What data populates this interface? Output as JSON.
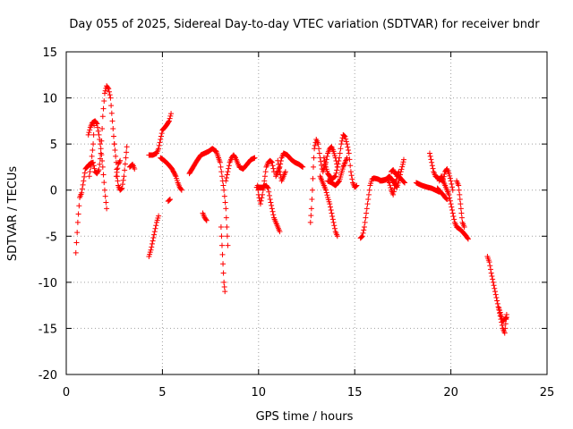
{
  "chart_data": {
    "type": "scatter",
    "title": "Day 055 of 2025, Sidereal Day-to-day VTEC variation (SDTVAR) for receiver bndr",
    "xlabel": "GPS time / hours",
    "ylabel": "SDTVAR / TECUs",
    "xlim": [
      0,
      25
    ],
    "ylim": [
      -20,
      15
    ],
    "xticks": [
      0,
      5,
      10,
      15,
      20,
      25
    ],
    "yticks": [
      -20,
      -15,
      -10,
      -5,
      0,
      5,
      10,
      15
    ],
    "xtick_labels": [
      "0",
      "5",
      "10",
      "15",
      "20",
      "25"
    ],
    "ytick_labels": [
      "-20",
      "-15",
      "-10",
      "-5",
      "0",
      "5",
      "10",
      "15"
    ],
    "grid": true,
    "marker": "+",
    "color": "#ff0000",
    "segments": [
      [
        [
          0.5,
          -6.8
        ],
        [
          0.6,
          -3.5
        ],
        [
          0.7,
          -0.8
        ],
        [
          0.8,
          -0.3
        ],
        [
          0.9,
          1.0
        ],
        [
          1.0,
          2.3
        ],
        [
          1.2,
          2.8
        ],
        [
          1.4,
          3.0
        ],
        [
          1.5,
          2.0
        ],
        [
          1.6,
          1.8
        ],
        [
          1.7,
          2.2
        ],
        [
          1.8,
          4.0
        ],
        [
          1.9,
          8.0
        ],
        [
          2.0,
          10.5
        ],
        [
          2.1,
          11.3
        ],
        [
          2.2,
          11.0
        ],
        [
          2.3,
          10.0
        ],
        [
          2.4,
          7.5
        ],
        [
          2.5,
          5.0
        ]
      ],
      [
        [
          1.15,
          6.0
        ],
        [
          1.25,
          6.8
        ],
        [
          1.35,
          7.3
        ],
        [
          1.5,
          7.5
        ],
        [
          1.6,
          7.2
        ],
        [
          1.7,
          6.0
        ],
        [
          1.8,
          4.5
        ],
        [
          1.9,
          2.5
        ],
        [
          2.0,
          0.0
        ],
        [
          2.1,
          -2.0
        ]
      ],
      [
        [
          1.2,
          1.5
        ],
        [
          1.3,
          3.0
        ],
        [
          1.4,
          5.0
        ],
        [
          1.45,
          7.0
        ]
      ],
      [
        [
          2.5,
          5.0
        ],
        [
          2.6,
          3.0
        ],
        [
          2.65,
          1.5
        ],
        [
          2.7,
          0.5
        ],
        [
          2.8,
          0.0
        ],
        [
          2.9,
          0.2
        ],
        [
          3.0,
          1.5
        ],
        [
          3.1,
          3.5
        ],
        [
          3.15,
          4.7
        ]
      ],
      [
        [
          2.6,
          1.5
        ],
        [
          2.7,
          2.8
        ],
        [
          2.8,
          3.2
        ]
      ],
      [
        [
          3.3,
          2.5
        ],
        [
          3.45,
          2.8
        ],
        [
          3.55,
          2.3
        ]
      ],
      [
        [
          4.3,
          -7.2
        ],
        [
          4.4,
          -6.5
        ],
        [
          4.5,
          -5.5
        ],
        [
          4.6,
          -4.5
        ],
        [
          4.7,
          -3.5
        ],
        [
          4.8,
          -2.8
        ]
      ],
      [
        [
          4.3,
          3.8
        ],
        [
          4.5,
          3.8
        ],
        [
          4.7,
          4.0
        ],
        [
          4.8,
          4.5
        ],
        [
          4.9,
          5.5
        ],
        [
          5.0,
          6.5
        ],
        [
          5.2,
          7.0
        ],
        [
          5.35,
          7.5
        ],
        [
          5.45,
          8.3
        ]
      ],
      [
        [
          5.3,
          -1.2
        ],
        [
          5.4,
          -1.0
        ]
      ],
      [
        [
          4.9,
          3.5
        ],
        [
          5.1,
          3.2
        ],
        [
          5.3,
          2.8
        ],
        [
          5.5,
          2.3
        ],
        [
          5.7,
          1.5
        ],
        [
          5.8,
          0.8
        ],
        [
          5.9,
          0.3
        ],
        [
          6.0,
          0.0
        ]
      ],
      [
        [
          6.4,
          1.8
        ],
        [
          6.6,
          2.5
        ],
        [
          6.8,
          3.2
        ],
        [
          7.0,
          3.8
        ],
        [
          7.2,
          4.0
        ],
        [
          7.4,
          4.2
        ],
        [
          7.6,
          4.5
        ],
        [
          7.8,
          4.2
        ],
        [
          8.0,
          3.0
        ],
        [
          8.1,
          1.5
        ],
        [
          8.2,
          0.0
        ],
        [
          8.3,
          -2.0
        ],
        [
          8.35,
          -4.0
        ],
        [
          8.4,
          -6.0
        ]
      ],
      [
        [
          7.1,
          -2.5
        ],
        [
          7.2,
          -3.0
        ],
        [
          7.3,
          -3.3
        ]
      ],
      [
        [
          8.05,
          -4.0
        ],
        [
          8.1,
          -6.0
        ],
        [
          8.15,
          -8.0
        ],
        [
          8.2,
          -10.0
        ],
        [
          8.25,
          -11.0
        ]
      ],
      [
        [
          8.3,
          1.0
        ],
        [
          8.4,
          2.0
        ],
        [
          8.5,
          3.0
        ],
        [
          8.6,
          3.5
        ],
        [
          8.7,
          3.8
        ],
        [
          8.8,
          3.5
        ],
        [
          8.9,
          3.0
        ],
        [
          9.0,
          2.5
        ],
        [
          9.2,
          2.3
        ],
        [
          9.4,
          2.8
        ],
        [
          9.6,
          3.3
        ],
        [
          9.8,
          3.5
        ]
      ],
      [
        [
          9.95,
          0.5
        ],
        [
          10.0,
          -0.5
        ],
        [
          10.1,
          -1.5
        ],
        [
          10.2,
          -0.5
        ],
        [
          10.3,
          1.0
        ],
        [
          10.4,
          2.5
        ],
        [
          10.5,
          3.0
        ],
        [
          10.6,
          3.2
        ],
        [
          10.7,
          3.0
        ],
        [
          10.8,
          2.0
        ]
      ],
      [
        [
          9.9,
          0.3
        ],
        [
          10.2,
          0.3
        ],
        [
          10.4,
          0.5
        ],
        [
          10.5,
          0.2
        ],
        [
          10.6,
          -1.0
        ],
        [
          10.7,
          -2.0
        ],
        [
          10.8,
          -3.0
        ],
        [
          10.9,
          -3.5
        ],
        [
          11.0,
          -4.0
        ],
        [
          11.1,
          -4.5
        ]
      ],
      [
        [
          10.9,
          1.5
        ],
        [
          11.1,
          2.5
        ],
        [
          11.2,
          3.5
        ],
        [
          11.3,
          4.0
        ],
        [
          11.5,
          3.8
        ],
        [
          11.7,
          3.3
        ],
        [
          11.9,
          3.0
        ],
        [
          12.1,
          2.8
        ],
        [
          12.3,
          2.5
        ]
      ],
      [
        [
          11.0,
          3.2
        ],
        [
          11.1,
          2.0
        ],
        [
          11.2,
          1.0
        ],
        [
          11.3,
          1.5
        ],
        [
          11.4,
          2.0
        ]
      ],
      [
        [
          12.7,
          -3.5
        ],
        [
          12.75,
          -2.0
        ],
        [
          12.8,
          0.0
        ],
        [
          12.85,
          2.5
        ],
        [
          12.9,
          4.5
        ],
        [
          13.0,
          5.5
        ],
        [
          13.1,
          5.0
        ],
        [
          13.2,
          3.5
        ],
        [
          13.3,
          2.3
        ]
      ],
      [
        [
          13.2,
          1.5
        ],
        [
          13.3,
          1.0
        ],
        [
          13.4,
          0.5
        ],
        [
          13.5,
          0.0
        ],
        [
          13.6,
          -0.8
        ],
        [
          13.7,
          -1.5
        ],
        [
          13.8,
          -2.5
        ],
        [
          13.9,
          -3.5
        ],
        [
          14.0,
          -4.5
        ],
        [
          14.1,
          -5.0
        ]
      ],
      [
        [
          13.35,
          2.0
        ],
        [
          13.5,
          3.0
        ],
        [
          13.6,
          4.0
        ],
        [
          13.7,
          4.5
        ],
        [
          13.8,
          4.7
        ],
        [
          13.9,
          4.2
        ],
        [
          14.0,
          3.5
        ],
        [
          14.1,
          2.5
        ]
      ],
      [
        [
          13.4,
          3.5
        ],
        [
          13.5,
          2.5
        ],
        [
          13.6,
          1.8
        ],
        [
          13.8,
          1.2
        ],
        [
          14.0,
          1.5
        ],
        [
          14.1,
          2.5
        ],
        [
          14.2,
          3.5
        ],
        [
          14.3,
          5.0
        ],
        [
          14.4,
          6.0
        ],
        [
          14.5,
          5.8
        ],
        [
          14.6,
          5.0
        ],
        [
          14.7,
          4.0
        ],
        [
          14.8,
          2.0
        ],
        [
          14.9,
          0.8
        ],
        [
          15.0,
          0.3
        ],
        [
          15.1,
          0.5
        ]
      ],
      [
        [
          13.6,
          1.0
        ],
        [
          13.8,
          0.8
        ],
        [
          14.0,
          0.5
        ],
        [
          14.2,
          1.0
        ],
        [
          14.4,
          2.5
        ],
        [
          14.6,
          3.5
        ]
      ],
      [
        [
          15.3,
          -5.2
        ],
        [
          15.4,
          -5.0
        ],
        [
          15.5,
          -4.0
        ],
        [
          15.6,
          -2.5
        ],
        [
          15.7,
          -1.0
        ],
        [
          15.8,
          0.5
        ],
        [
          15.9,
          1.2
        ],
        [
          16.0,
          1.3
        ],
        [
          16.2,
          1.2
        ],
        [
          16.4,
          1.0
        ],
        [
          16.6,
          1.1
        ],
        [
          16.8,
          1.5
        ],
        [
          17.0,
          1.0
        ],
        [
          17.2,
          0.3
        ],
        [
          17.3,
          1.0
        ],
        [
          17.4,
          2.0
        ],
        [
          17.5,
          2.8
        ],
        [
          17.55,
          3.3
        ]
      ],
      [
        [
          16.3,
          1.0
        ],
        [
          16.5,
          1.1
        ],
        [
          16.7,
          1.2
        ],
        [
          16.8,
          0.8
        ],
        [
          16.9,
          0.0
        ],
        [
          17.0,
          -0.5
        ],
        [
          17.1,
          0.5
        ],
        [
          17.2,
          1.5
        ],
        [
          17.3,
          2.0
        ]
      ],
      [
        [
          16.9,
          2.0
        ],
        [
          17.0,
          2.2
        ],
        [
          17.1,
          1.8
        ],
        [
          17.3,
          1.5
        ],
        [
          17.5,
          1.0
        ],
        [
          17.6,
          0.8
        ]
      ],
      [
        [
          18.2,
          0.8
        ],
        [
          18.5,
          0.5
        ],
        [
          18.8,
          0.3
        ],
        [
          19.0,
          0.2
        ],
        [
          19.2,
          0.0
        ],
        [
          19.4,
          -0.2
        ]
      ],
      [
        [
          18.9,
          4.0
        ],
        [
          19.0,
          3.0
        ],
        [
          19.1,
          2.0
        ],
        [
          19.2,
          1.5
        ],
        [
          19.4,
          1.2
        ],
        [
          19.6,
          1.0
        ],
        [
          19.7,
          0.5
        ],
        [
          19.8,
          0.0
        ],
        [
          19.9,
          -0.5
        ],
        [
          20.0,
          -1.5
        ],
        [
          20.1,
          -2.5
        ],
        [
          20.2,
          -3.5
        ],
        [
          20.3,
          -4.0
        ],
        [
          20.5,
          -4.3
        ],
        [
          20.6,
          -4.5
        ],
        [
          20.8,
          -5.0
        ],
        [
          20.9,
          -5.3
        ]
      ],
      [
        [
          19.3,
          0.2
        ],
        [
          19.5,
          -0.3
        ],
        [
          19.6,
          -0.5
        ],
        [
          19.7,
          -0.8
        ],
        [
          19.8,
          -1.0
        ]
      ],
      [
        [
          19.4,
          1.0
        ],
        [
          19.5,
          1.5
        ],
        [
          19.6,
          1.2
        ],
        [
          19.7,
          2.0
        ],
        [
          19.8,
          2.3
        ],
        [
          19.9,
          1.8
        ],
        [
          20.0,
          1.0
        ],
        [
          20.1,
          0.0
        ]
      ],
      [
        [
          20.3,
          1.0
        ],
        [
          20.4,
          0.5
        ],
        [
          20.45,
          -0.5
        ],
        [
          20.5,
          -1.5
        ],
        [
          20.55,
          -2.5
        ],
        [
          20.6,
          -3.5
        ],
        [
          20.7,
          -4.0
        ]
      ],
      [
        [
          21.9,
          -7.2
        ],
        [
          22.0,
          -7.8
        ],
        [
          22.1,
          -9.0
        ],
        [
          22.2,
          -10.0
        ],
        [
          22.3,
          -11.0
        ],
        [
          22.4,
          -12.0
        ],
        [
          22.5,
          -13.0
        ],
        [
          22.6,
          -14.0
        ],
        [
          22.7,
          -15.0
        ],
        [
          22.8,
          -15.5
        ],
        [
          22.85,
          -14.5
        ],
        [
          22.9,
          -13.5
        ]
      ],
      [
        [
          22.5,
          -12.8
        ],
        [
          22.6,
          -13.5
        ],
        [
          22.7,
          -14.2
        ],
        [
          22.8,
          -14.0
        ],
        [
          22.9,
          -13.8
        ]
      ]
    ]
  }
}
